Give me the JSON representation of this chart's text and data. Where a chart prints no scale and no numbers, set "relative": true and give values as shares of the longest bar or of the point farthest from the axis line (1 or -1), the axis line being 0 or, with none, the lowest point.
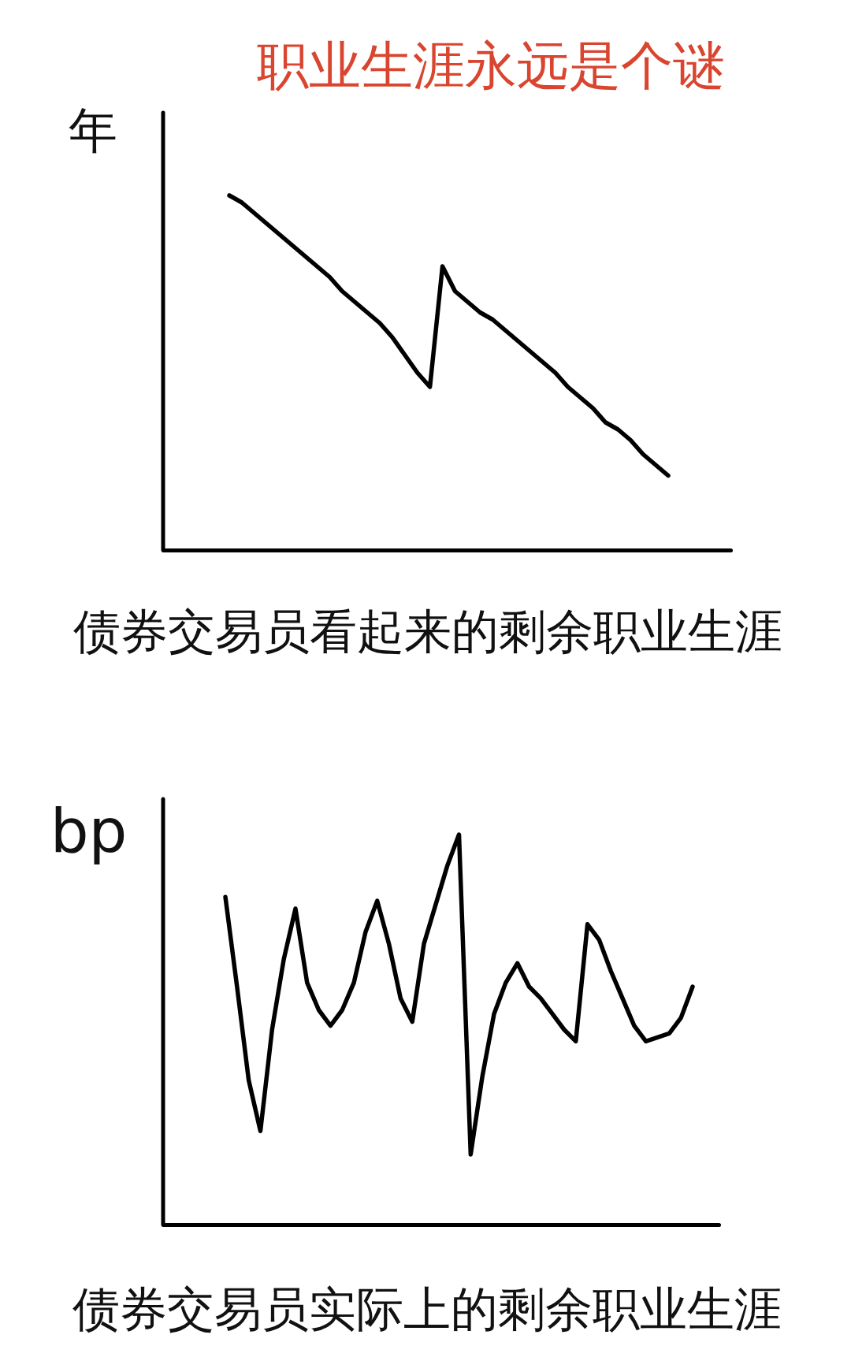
{
  "chart_data": [
    {
      "type": "line",
      "title": "职业生涯永远是个谜",
      "ylabel": "年",
      "xlabel": "债券交易员看起来的剩余职业生涯",
      "relative": true,
      "tick_labels": false,
      "categories": [
        null,
        null,
        null,
        null,
        null,
        null,
        null,
        null,
        null,
        null,
        null,
        null,
        null,
        null,
        null,
        null,
        null,
        null,
        null,
        null,
        null,
        null,
        null,
        null,
        null,
        null,
        null,
        null,
        null,
        null,
        null,
        null,
        null,
        null,
        null,
        null
      ],
      "series": [
        {
          "color": "#000000",
          "values": [
            1,
            0.98,
            0.95,
            0.92,
            0.89,
            0.86,
            0.83,
            0.8,
            0.77,
            0.73,
            0.7,
            0.67,
            0.64,
            0.6,
            0.55,
            0.5,
            0.46,
            0.8,
            0.73,
            0.7,
            0.67,
            0.65,
            0.62,
            0.59,
            0.56,
            0.53,
            0.5,
            0.46,
            0.43,
            0.4,
            0.36,
            0.34,
            0.31,
            0.27,
            0.24,
            0.21
          ]
        }
      ]
    },
    {
      "type": "line",
      "ylabel": "bp",
      "xlabel": "债券交易员实际上的剩余职业生涯",
      "relative": true,
      "tick_labels": false,
      "categories": [
        null,
        null,
        null,
        null,
        null,
        null,
        null,
        null,
        null,
        null,
        null,
        null,
        null,
        null,
        null,
        null,
        null,
        null,
        null,
        null,
        null,
        null,
        null,
        null,
        null,
        null,
        null,
        null,
        null,
        null,
        null,
        null,
        null,
        null,
        null,
        null,
        null,
        null,
        null,
        null,
        null
      ],
      "series": [
        {
          "color": "#000000",
          "values": [
            0.84,
            0.61,
            0.37,
            0.24,
            0.5,
            0.68,
            0.81,
            0.62,
            0.55,
            0.51,
            0.55,
            0.62,
            0.75,
            0.83,
            0.72,
            0.58,
            0.52,
            0.72,
            0.82,
            0.92,
            1,
            0.18,
            0.38,
            0.54,
            0.62,
            0.67,
            0.61,
            0.58,
            0.54,
            0.5,
            0.47,
            0.77,
            0.73,
            0.65,
            0.58,
            0.51,
            0.47,
            0.48,
            0.49,
            0.53,
            0.61
          ]
        }
      ]
    }
  ]
}
